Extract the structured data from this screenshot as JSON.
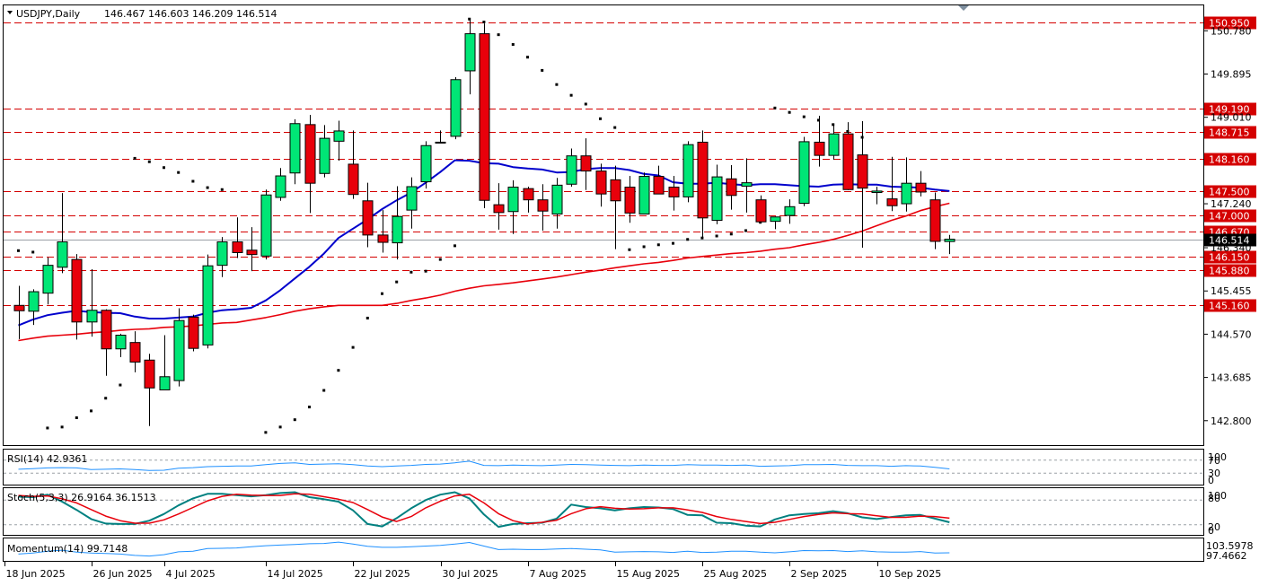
{
  "header": {
    "symbol_label": "USDJPY,Daily",
    "ohlc": "146.467 146.603 146.209 146.514"
  },
  "indicators": {
    "rsi_label": "RSI(14) 42.9361",
    "stoch_label": "Stoch(5,3,3) 26.9164 36.1513",
    "momentum_label": "Momentum(14) 99.7148"
  },
  "rsi_scale": [
    "100",
    "70",
    "30",
    "0"
  ],
  "stoch_scale": [
    "100",
    "80",
    "20",
    "0"
  ],
  "momentum_scale": [
    "103.5978",
    "97.4662"
  ],
  "colors": {
    "bull": "#00e676",
    "bear": "#e8000b",
    "ma_fast": "#0000cc",
    "ma_slow": "#e8000b",
    "level": "#d40000",
    "indicator": "#1e90ff",
    "stoch_main": "#008080",
    "stoch_signal": "#e8000b",
    "price_tag": "#000000"
  },
  "chart_data": {
    "type": "candlestick",
    "symbol": "USDJPY",
    "timeframe": "Daily",
    "ylim": [
      142.3,
      151.3
    ],
    "y_ticks": [
      "150.780",
      "149.895",
      "149.010",
      "147.240",
      "146.340",
      "145.455",
      "144.570",
      "143.685",
      "142.800"
    ],
    "x_ticks": [
      "18 Jun 2025",
      "26 Jun 2025",
      "4 Jul 2025",
      "14 Jul 2025",
      "22 Jul 2025",
      "30 Jul 2025",
      "7 Aug 2025",
      "15 Aug 2025",
      "25 Aug 2025",
      "2 Sep 2025",
      "10 Sep 2025"
    ],
    "current_price": "146.514",
    "levels": [
      "150.950",
      "149.190",
      "148.715",
      "148.160",
      "147.500",
      "147.000",
      "146.670",
      "146.150",
      "145.880",
      "145.160"
    ],
    "candles": [
      {
        "o": 145.16,
        "h": 145.56,
        "l": 144.47,
        "c": 145.05
      },
      {
        "o": 145.04,
        "h": 145.49,
        "l": 144.76,
        "c": 145.44
      },
      {
        "o": 145.41,
        "h": 146.14,
        "l": 145.18,
        "c": 145.98
      },
      {
        "o": 145.94,
        "h": 147.46,
        "l": 145.82,
        "c": 146.46
      },
      {
        "o": 146.1,
        "h": 146.21,
        "l": 144.46,
        "c": 144.82
      },
      {
        "o": 144.82,
        "h": 145.9,
        "l": 144.52,
        "c": 145.06
      },
      {
        "o": 145.06,
        "h": 145.08,
        "l": 143.72,
        "c": 144.27
      },
      {
        "o": 144.27,
        "h": 144.58,
        "l": 144.1,
        "c": 144.55
      },
      {
        "o": 144.4,
        "h": 144.63,
        "l": 143.79,
        "c": 144.0
      },
      {
        "o": 144.04,
        "h": 144.17,
        "l": 142.69,
        "c": 143.47
      },
      {
        "o": 143.43,
        "h": 144.55,
        "l": 143.43,
        "c": 143.7
      },
      {
        "o": 143.62,
        "h": 145.1,
        "l": 143.5,
        "c": 144.85
      },
      {
        "o": 144.92,
        "h": 144.97,
        "l": 144.22,
        "c": 144.28
      },
      {
        "o": 144.35,
        "h": 146.2,
        "l": 144.28,
        "c": 145.97
      },
      {
        "o": 145.98,
        "h": 146.56,
        "l": 145.74,
        "c": 146.46
      },
      {
        "o": 146.46,
        "h": 146.96,
        "l": 146.13,
        "c": 146.24
      },
      {
        "o": 146.29,
        "h": 146.76,
        "l": 145.86,
        "c": 146.2
      },
      {
        "o": 146.17,
        "h": 147.53,
        "l": 146.1,
        "c": 147.42
      },
      {
        "o": 147.37,
        "h": 147.97,
        "l": 147.3,
        "c": 147.81
      },
      {
        "o": 147.87,
        "h": 148.97,
        "l": 147.64,
        "c": 148.88
      },
      {
        "o": 148.86,
        "h": 149.06,
        "l": 147.05,
        "c": 147.66
      },
      {
        "o": 147.86,
        "h": 148.85,
        "l": 147.78,
        "c": 148.58
      },
      {
        "o": 148.52,
        "h": 148.94,
        "l": 148.12,
        "c": 148.73
      },
      {
        "o": 148.05,
        "h": 148.74,
        "l": 147.34,
        "c": 147.43
      },
      {
        "o": 147.3,
        "h": 147.67,
        "l": 146.35,
        "c": 146.6
      },
      {
        "o": 146.6,
        "h": 147.11,
        "l": 146.24,
        "c": 146.45
      },
      {
        "o": 146.44,
        "h": 147.6,
        "l": 146.1,
        "c": 146.98
      },
      {
        "o": 147.11,
        "h": 147.78,
        "l": 146.73,
        "c": 147.59
      },
      {
        "o": 147.69,
        "h": 148.52,
        "l": 147.55,
        "c": 148.43
      },
      {
        "o": 148.5,
        "h": 148.74,
        "l": 148.48,
        "c": 148.5
      },
      {
        "o": 148.62,
        "h": 149.83,
        "l": 148.56,
        "c": 149.78
      },
      {
        "o": 149.96,
        "h": 151.0,
        "l": 149.48,
        "c": 150.72
      },
      {
        "o": 150.72,
        "h": 150.93,
        "l": 147.15,
        "c": 147.31
      },
      {
        "o": 147.22,
        "h": 147.66,
        "l": 146.71,
        "c": 147.06
      },
      {
        "o": 147.08,
        "h": 147.72,
        "l": 146.62,
        "c": 147.58
      },
      {
        "o": 147.55,
        "h": 147.59,
        "l": 147.06,
        "c": 147.32
      },
      {
        "o": 147.32,
        "h": 147.64,
        "l": 146.69,
        "c": 147.09
      },
      {
        "o": 147.03,
        "h": 147.77,
        "l": 146.73,
        "c": 147.62
      },
      {
        "o": 147.64,
        "h": 148.37,
        "l": 147.59,
        "c": 148.22
      },
      {
        "o": 148.22,
        "h": 148.58,
        "l": 147.52,
        "c": 147.91
      },
      {
        "o": 147.91,
        "h": 148.06,
        "l": 147.18,
        "c": 147.44
      },
      {
        "o": 147.73,
        "h": 148.02,
        "l": 146.31,
        "c": 147.3
      },
      {
        "o": 147.58,
        "h": 147.81,
        "l": 146.85,
        "c": 147.05
      },
      {
        "o": 147.03,
        "h": 147.88,
        "l": 147.03,
        "c": 147.8
      },
      {
        "o": 147.8,
        "h": 148.02,
        "l": 147.46,
        "c": 147.44
      },
      {
        "o": 147.58,
        "h": 147.81,
        "l": 147.1,
        "c": 147.38
      },
      {
        "o": 147.38,
        "h": 148.52,
        "l": 147.27,
        "c": 148.45
      },
      {
        "o": 148.5,
        "h": 148.74,
        "l": 146.54,
        "c": 146.95
      },
      {
        "o": 146.9,
        "h": 148.04,
        "l": 146.82,
        "c": 147.79
      },
      {
        "o": 147.75,
        "h": 148.03,
        "l": 147.12,
        "c": 147.41
      },
      {
        "o": 147.6,
        "h": 148.17,
        "l": 147.06,
        "c": 147.67
      },
      {
        "o": 147.32,
        "h": 147.41,
        "l": 146.86,
        "c": 146.87
      },
      {
        "o": 146.88,
        "h": 146.98,
        "l": 146.72,
        "c": 146.97
      },
      {
        "o": 147.0,
        "h": 147.33,
        "l": 146.83,
        "c": 147.18
      },
      {
        "o": 147.25,
        "h": 148.61,
        "l": 147.19,
        "c": 148.51
      },
      {
        "o": 148.5,
        "h": 149.04,
        "l": 148.0,
        "c": 148.23
      },
      {
        "o": 148.23,
        "h": 148.84,
        "l": 148.14,
        "c": 148.67
      },
      {
        "o": 148.67,
        "h": 148.91,
        "l": 147.52,
        "c": 147.53
      },
      {
        "o": 148.24,
        "h": 148.93,
        "l": 146.34,
        "c": 147.56
      },
      {
        "o": 147.47,
        "h": 147.59,
        "l": 147.23,
        "c": 147.5
      },
      {
        "o": 147.34,
        "h": 148.2,
        "l": 147.09,
        "c": 147.2
      },
      {
        "o": 147.24,
        "h": 148.19,
        "l": 147.08,
        "c": 147.66
      },
      {
        "o": 147.66,
        "h": 147.91,
        "l": 147.39,
        "c": 147.48
      },
      {
        "o": 147.32,
        "h": 147.47,
        "l": 146.31,
        "c": 146.47
      },
      {
        "o": 146.467,
        "h": 146.603,
        "l": 146.209,
        "c": 146.514
      }
    ],
    "ma_fast": [
      144.75,
      144.87,
      144.96,
      145.01,
      145.05,
      145.02,
      145.01,
      145.0,
      144.93,
      144.89,
      144.89,
      144.91,
      144.93,
      145.01,
      145.06,
      145.08,
      145.11,
      145.26,
      145.47,
      145.71,
      145.95,
      146.22,
      146.54,
      146.73,
      146.92,
      147.13,
      147.31,
      147.47,
      147.67,
      147.89,
      148.13,
      148.12,
      148.07,
      148.06,
      147.99,
      147.96,
      147.94,
      147.88,
      147.89,
      147.95,
      147.97,
      147.97,
      147.93,
      147.85,
      147.82,
      147.68,
      147.65,
      147.65,
      147.67,
      147.64,
      147.62,
      147.64,
      147.64,
      147.62,
      147.6,
      147.59,
      147.63,
      147.64,
      147.63,
      147.63,
      147.59,
      147.58,
      147.57,
      147.53,
      147.5
    ],
    "ma_slow": [
      144.44,
      144.49,
      144.53,
      144.55,
      144.57,
      144.6,
      144.62,
      144.65,
      144.67,
      144.68,
      144.71,
      144.72,
      144.74,
      144.77,
      144.8,
      144.81,
      144.86,
      144.91,
      144.97,
      145.04,
      145.09,
      145.13,
      145.16,
      145.16,
      145.16,
      145.16,
      145.2,
      145.26,
      145.31,
      145.37,
      145.45,
      145.51,
      145.56,
      145.59,
      145.62,
      145.66,
      145.7,
      145.74,
      145.79,
      145.84,
      145.88,
      145.93,
      145.97,
      146.01,
      146.04,
      146.08,
      146.13,
      146.16,
      146.19,
      146.22,
      146.24,
      146.27,
      146.31,
      146.34,
      146.4,
      146.45,
      146.51,
      146.59,
      146.68,
      146.79,
      146.9,
      146.99,
      147.1,
      147.18,
      147.25
    ],
    "sar": [
      {
        "i": 0,
        "v": 146.28
      },
      {
        "i": 1,
        "v": 146.25
      },
      {
        "i": 2,
        "v": 142.65
      },
      {
        "i": 3,
        "v": 142.67
      },
      {
        "i": 4,
        "v": 142.86
      },
      {
        "i": 5,
        "v": 143.0
      },
      {
        "i": 6,
        "v": 143.26
      },
      {
        "i": 7,
        "v": 143.53
      },
      {
        "i": 8,
        "v": 148.17
      },
      {
        "i": 9,
        "v": 148.1
      },
      {
        "i": 10,
        "v": 147.98
      },
      {
        "i": 11,
        "v": 147.88
      },
      {
        "i": 12,
        "v": 147.7
      },
      {
        "i": 13,
        "v": 147.57
      },
      {
        "i": 14,
        "v": 147.53
      },
      {
        "i": 17,
        "v": 142.56
      },
      {
        "i": 18,
        "v": 142.67
      },
      {
        "i": 19,
        "v": 142.82
      },
      {
        "i": 20,
        "v": 143.08
      },
      {
        "i": 21,
        "v": 143.42
      },
      {
        "i": 22,
        "v": 143.83
      },
      {
        "i": 23,
        "v": 144.3
      },
      {
        "i": 24,
        "v": 144.9
      },
      {
        "i": 25,
        "v": 145.4
      },
      {
        "i": 26,
        "v": 145.64
      },
      {
        "i": 27,
        "v": 145.84
      },
      {
        "i": 28,
        "v": 145.86
      },
      {
        "i": 29,
        "v": 146.1
      },
      {
        "i": 30,
        "v": 146.38
      },
      {
        "i": 31,
        "v": 151.02
      },
      {
        "i": 32,
        "v": 150.96
      },
      {
        "i": 33,
        "v": 150.7
      },
      {
        "i": 34,
        "v": 150.5
      },
      {
        "i": 35,
        "v": 150.24
      },
      {
        "i": 36,
        "v": 149.97
      },
      {
        "i": 37,
        "v": 149.68
      },
      {
        "i": 38,
        "v": 149.46
      },
      {
        "i": 39,
        "v": 149.28
      },
      {
        "i": 40,
        "v": 148.98
      },
      {
        "i": 41,
        "v": 148.8
      },
      {
        "i": 42,
        "v": 146.3
      },
      {
        "i": 43,
        "v": 146.36
      },
      {
        "i": 44,
        "v": 146.4
      },
      {
        "i": 45,
        "v": 146.43
      },
      {
        "i": 46,
        "v": 146.51
      },
      {
        "i": 47,
        "v": 146.54
      },
      {
        "i": 48,
        "v": 146.58
      },
      {
        "i": 49,
        "v": 146.62
      },
      {
        "i": 50,
        "v": 146.69
      },
      {
        "i": 51,
        "v": 146.86
      },
      {
        "i": 52,
        "v": 149.2
      },
      {
        "i": 53,
        "v": 149.11
      },
      {
        "i": 54,
        "v": 149.02
      },
      {
        "i": 55,
        "v": 148.95
      },
      {
        "i": 56,
        "v": 148.86
      },
      {
        "i": 57,
        "v": 148.72
      },
      {
        "i": 58,
        "v": 148.6
      }
    ],
    "rsi": [
      42,
      44,
      46,
      47,
      46,
      41,
      42,
      43,
      41,
      38,
      39,
      45,
      47,
      50,
      51,
      52,
      52,
      56,
      60,
      62,
      57,
      58,
      59,
      56,
      52,
      50,
      52,
      54,
      57,
      58,
      62,
      67,
      54,
      53,
      55,
      54,
      53,
      55,
      57,
      56,
      55,
      54,
      53,
      55,
      54,
      54,
      56,
      55,
      55,
      54,
      55,
      51,
      52,
      53,
      56,
      56,
      57,
      54,
      53,
      53,
      51,
      53,
      52,
      48,
      43
    ],
    "stoch_main": [
      88,
      87,
      93,
      76,
      56,
      34,
      23,
      22,
      22,
      30,
      46,
      67,
      84,
      95,
      95,
      92,
      89,
      92,
      97,
      99,
      87,
      82,
      76,
      55,
      22,
      16,
      36,
      60,
      80,
      93,
      99,
      84,
      45,
      15,
      22,
      24,
      25,
      35,
      69,
      63,
      60,
      55,
      60,
      63,
      62,
      58,
      44,
      43,
      25,
      24,
      18,
      16,
      33,
      43,
      46,
      48,
      53,
      48,
      38,
      34,
      39,
      43,
      44,
      35,
      26
    ],
    "stoch_signal": [
      91,
      89,
      90,
      83,
      73,
      57,
      41,
      30,
      24,
      24,
      32,
      46,
      62,
      78,
      89,
      94,
      92,
      91,
      91,
      95,
      94,
      88,
      82,
      74,
      57,
      39,
      28,
      40,
      61,
      77,
      90,
      94,
      73,
      47,
      30,
      22,
      26,
      31,
      47,
      59,
      64,
      60,
      58,
      59,
      61,
      61,
      56,
      50,
      40,
      33,
      28,
      23,
      26,
      33,
      40,
      45,
      49,
      47,
      46,
      42,
      38,
      38,
      41,
      40,
      36
    ],
    "momentum": [
      99.3,
      99.6,
      100.2,
      100.5,
      99.9,
      99.6,
      99.5,
      99.3,
      98.9,
      98.7,
      99.1,
      100.0,
      100.2,
      101.0,
      101.1,
      101.2,
      101.6,
      101.9,
      102.1,
      102.3,
      102.5,
      102.6,
      103.0,
      102.4,
      101.7,
      101.4,
      101.4,
      101.6,
      101.8,
      102.0,
      102.4,
      102.9,
      101.8,
      100.7,
      100.8,
      100.7,
      100.7,
      100.9,
      101.0,
      100.8,
      100.6,
      99.9,
      100.0,
      100.1,
      100.0,
      99.8,
      100.2,
      99.8,
      99.9,
      100.2,
      100.2,
      99.9,
      99.7,
      100.0,
      100.4,
      100.3,
      100.4,
      100.1,
      100.3,
      100.0,
      99.9,
      99.9,
      100.1,
      99.6,
      99.7
    ]
  }
}
